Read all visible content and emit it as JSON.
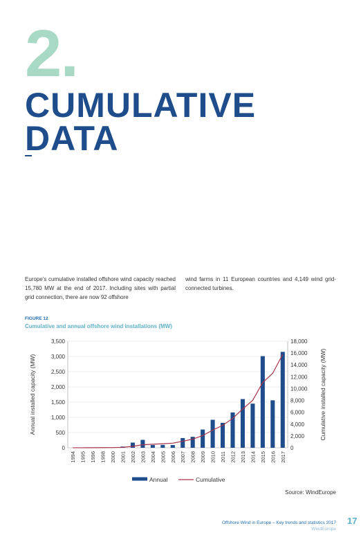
{
  "header": {
    "chapter_number": "2.",
    "title_line1": "CUMULATIVE",
    "title_line2": "DATA"
  },
  "intro": {
    "left": "Europe’s cumulative installed offshore wind capacity reached 15,780 MW at the end of 2017. Including sites with partial grid connection, there are now 92 offshore",
    "right": "wind farms in 11 European countries and 4,149 wind grid-connected turbines."
  },
  "figure": {
    "label": "FIGURE 12",
    "caption": "Cumulative and annual offshore wind installations (MW)"
  },
  "chart_data": {
    "type": "bar",
    "categories": [
      "1994",
      "1995",
      "1996",
      "1998",
      "2000",
      "2001",
      "2002",
      "2003",
      "2004",
      "2005",
      "2006",
      "2007",
      "2008",
      "2009",
      "2010",
      "2011",
      "2012",
      "2013",
      "2014",
      "2015",
      "2016",
      "2017"
    ],
    "series": [
      {
        "name": "Annual",
        "type": "bar",
        "axis": "left",
        "values": [
          0,
          0,
          0,
          0,
          0,
          40,
          170,
          260,
          90,
          95,
          90,
          320,
          360,
          600,
          920,
          820,
          1160,
          1600,
          1450,
          3010,
          1560,
          3150
        ]
      },
      {
        "name": "Cumulative",
        "type": "line",
        "axis": "right",
        "values": [
          5,
          10,
          15,
          25,
          35,
          80,
          250,
          510,
          600,
          690,
          780,
          1100,
          1460,
          2060,
          2980,
          3800,
          4960,
          6560,
          8010,
          11020,
          12580,
          15780
        ]
      }
    ],
    "ylabel": "Annual installed capacity (MW)",
    "y2label": "Cumulative installed capacity (MW)",
    "ylim": [
      0,
      3500
    ],
    "y2lim": [
      0,
      18000
    ],
    "yticks": [
      "0",
      "500",
      "1,000",
      "1,500",
      "2,000",
      "2,500",
      "3,000",
      "3,500"
    ],
    "y2ticks": [
      "0",
      "2,000",
      "4,000",
      "6,000",
      "8,000",
      "10,000",
      "12,000",
      "14,000",
      "16,000",
      "18,000"
    ],
    "grid": true,
    "legend": "bottom",
    "colors": {
      "bar": "#1f4d8c",
      "line": "#a8324a"
    }
  },
  "source": "Source: WindEurope",
  "footer": {
    "title": "Offshore Wind in Europe – Key trends and statistics 2017",
    "brand": "WindEurope",
    "page": "17"
  }
}
